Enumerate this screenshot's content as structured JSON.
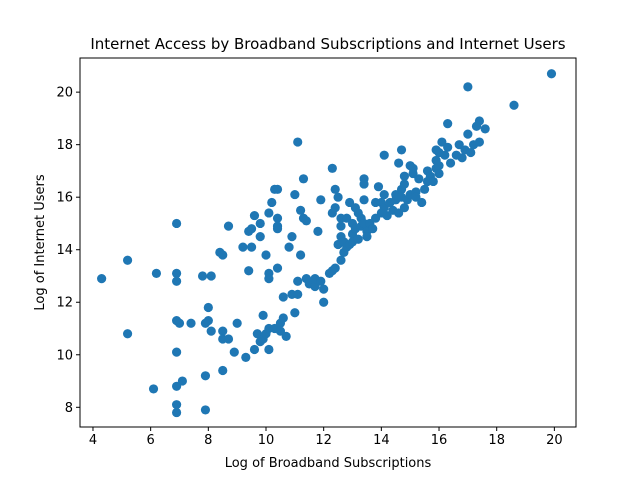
{
  "chart_data": {
    "type": "scatter",
    "title": "Internet Access by Broadband Subscriptions and Internet Users",
    "xlabel": "Log of Broadband Subscriptions",
    "ylabel": "Log of Internet Users",
    "xlim": [
      3.55,
      20.75
    ],
    "ylim": [
      7.25,
      21.3
    ],
    "xticks": [
      4,
      6,
      8,
      10,
      12,
      14,
      16,
      18,
      20
    ],
    "yticks": [
      8,
      10,
      12,
      14,
      16,
      18,
      20
    ],
    "grid": false,
    "marker_color": "#1f77b4",
    "points": [
      [
        4.3,
        12.9
      ],
      [
        5.2,
        13.6
      ],
      [
        5.2,
        10.8
      ],
      [
        6.1,
        8.7
      ],
      [
        6.2,
        13.1
      ],
      [
        6.9,
        15.0
      ],
      [
        6.9,
        13.1
      ],
      [
        6.9,
        12.8
      ],
      [
        6.9,
        11.3
      ],
      [
        7.0,
        11.2
      ],
      [
        6.9,
        10.1
      ],
      [
        6.9,
        8.8
      ],
      [
        6.9,
        8.1
      ],
      [
        6.9,
        7.8
      ],
      [
        7.1,
        9.0
      ],
      [
        7.4,
        11.2
      ],
      [
        7.8,
        13.0
      ],
      [
        7.9,
        11.2
      ],
      [
        8.0,
        11.3
      ],
      [
        8.0,
        11.8
      ],
      [
        8.1,
        13.0
      ],
      [
        8.1,
        10.9
      ],
      [
        7.9,
        9.2
      ],
      [
        7.9,
        7.9
      ],
      [
        8.4,
        13.9
      ],
      [
        8.5,
        13.8
      ],
      [
        8.5,
        10.9
      ],
      [
        8.5,
        10.6
      ],
      [
        8.5,
        9.4
      ],
      [
        8.7,
        14.9
      ],
      [
        8.7,
        10.6
      ],
      [
        8.9,
        10.1
      ],
      [
        9.0,
        11.2
      ],
      [
        9.2,
        14.1
      ],
      [
        9.3,
        9.9
      ],
      [
        9.4,
        13.2
      ],
      [
        9.4,
        14.7
      ],
      [
        9.5,
        14.8
      ],
      [
        9.5,
        14.1
      ],
      [
        9.6,
        15.3
      ],
      [
        9.6,
        10.2
      ],
      [
        9.7,
        10.8
      ],
      [
        9.8,
        15.0
      ],
      [
        9.8,
        14.5
      ],
      [
        9.9,
        11.5
      ],
      [
        9.8,
        10.5
      ],
      [
        10.0,
        13.8
      ],
      [
        9.9,
        10.6
      ],
      [
        10.0,
        10.8
      ],
      [
        10.1,
        15.4
      ],
      [
        10.1,
        13.1
      ],
      [
        10.1,
        12.9
      ],
      [
        10.1,
        11.0
      ],
      [
        10.1,
        10.2
      ],
      [
        10.2,
        15.8
      ],
      [
        10.3,
        16.3
      ],
      [
        10.4,
        16.3
      ],
      [
        10.4,
        15.2
      ],
      [
        10.4,
        14.9
      ],
      [
        10.4,
        14.8
      ],
      [
        10.4,
        13.3
      ],
      [
        10.3,
        11.0
      ],
      [
        10.5,
        11.2
      ],
      [
        10.5,
        10.9
      ],
      [
        10.6,
        12.2
      ],
      [
        10.6,
        11.4
      ],
      [
        10.7,
        10.7
      ],
      [
        10.8,
        14.1
      ],
      [
        10.9,
        14.5
      ],
      [
        11.0,
        16.1
      ],
      [
        10.9,
        12.3
      ],
      [
        11.0,
        11.6
      ],
      [
        11.1,
        18.1
      ],
      [
        11.1,
        12.8
      ],
      [
        11.1,
        12.3
      ],
      [
        11.2,
        15.5
      ],
      [
        11.2,
        13.8
      ],
      [
        11.3,
        16.7
      ],
      [
        11.3,
        15.2
      ],
      [
        11.4,
        15.1
      ],
      [
        11.4,
        12.9
      ],
      [
        11.5,
        12.7
      ],
      [
        11.7,
        12.6
      ],
      [
        11.7,
        12.9
      ],
      [
        11.8,
        14.7
      ],
      [
        11.9,
        15.9
      ],
      [
        11.9,
        12.8
      ],
      [
        12.0,
        12.5
      ],
      [
        12.0,
        12.0
      ],
      [
        12.2,
        13.1
      ],
      [
        12.3,
        17.1
      ],
      [
        12.3,
        15.4
      ],
      [
        12.3,
        13.2
      ],
      [
        12.4,
        16.3
      ],
      [
        12.4,
        15.6
      ],
      [
        12.4,
        13.3
      ],
      [
        12.5,
        16.0
      ],
      [
        12.5,
        14.2
      ],
      [
        12.6,
        15.2
      ],
      [
        12.6,
        14.9
      ],
      [
        12.6,
        14.5
      ],
      [
        12.6,
        13.6
      ],
      [
        12.7,
        14.3
      ],
      [
        12.7,
        13.9
      ],
      [
        12.8,
        15.2
      ],
      [
        12.8,
        14.1
      ],
      [
        12.9,
        15.8
      ],
      [
        12.9,
        14.2
      ],
      [
        13.0,
        15.0
      ],
      [
        13.0,
        14.6
      ],
      [
        13.0,
        14.3
      ],
      [
        13.1,
        15.6
      ],
      [
        13.1,
        14.8
      ],
      [
        13.2,
        15.4
      ],
      [
        13.2,
        14.4
      ],
      [
        13.3,
        15.2
      ],
      [
        13.3,
        14.9
      ],
      [
        13.4,
        16.7
      ],
      [
        13.4,
        16.5
      ],
      [
        13.4,
        15.9
      ],
      [
        13.4,
        15.0
      ],
      [
        13.5,
        14.7
      ],
      [
        13.5,
        14.5
      ],
      [
        13.6,
        15.0
      ],
      [
        13.7,
        14.8
      ],
      [
        13.8,
        15.2
      ],
      [
        13.8,
        15.8
      ],
      [
        13.9,
        16.4
      ],
      [
        14.0,
        15.8
      ],
      [
        14.0,
        15.4
      ],
      [
        14.1,
        17.6
      ],
      [
        14.1,
        16.1
      ],
      [
        14.1,
        15.6
      ],
      [
        14.2,
        15.3
      ],
      [
        14.3,
        15.8
      ],
      [
        14.4,
        15.5
      ],
      [
        14.5,
        16.1
      ],
      [
        14.5,
        15.9
      ],
      [
        14.6,
        17.3
      ],
      [
        14.6,
        15.4
      ],
      [
        14.7,
        17.8
      ],
      [
        14.7,
        16.3
      ],
      [
        14.7,
        16.0
      ],
      [
        14.8,
        16.8
      ],
      [
        14.8,
        16.5
      ],
      [
        14.8,
        15.6
      ],
      [
        14.9,
        15.9
      ],
      [
        15.0,
        17.2
      ],
      [
        15.0,
        16.1
      ],
      [
        15.1,
        17.1
      ],
      [
        15.1,
        16.9
      ],
      [
        15.2,
        16.2
      ],
      [
        15.2,
        16.0
      ],
      [
        15.3,
        16.7
      ],
      [
        15.4,
        15.8
      ],
      [
        15.5,
        16.3
      ],
      [
        15.6,
        17.0
      ],
      [
        15.6,
        16.6
      ],
      [
        15.7,
        16.8
      ],
      [
        15.8,
        16.6
      ],
      [
        15.9,
        17.8
      ],
      [
        15.9,
        17.4
      ],
      [
        15.9,
        17.1
      ],
      [
        16.0,
        17.7
      ],
      [
        16.0,
        17.2
      ],
      [
        16.0,
        16.9
      ],
      [
        16.1,
        18.1
      ],
      [
        16.2,
        17.6
      ],
      [
        16.3,
        18.8
      ],
      [
        16.3,
        17.9
      ],
      [
        16.4,
        17.3
      ],
      [
        16.6,
        17.6
      ],
      [
        16.7,
        18.0
      ],
      [
        16.8,
        17.5
      ],
      [
        16.9,
        17.8
      ],
      [
        17.0,
        20.2
      ],
      [
        17.0,
        18.4
      ],
      [
        17.1,
        17.7
      ],
      [
        17.2,
        18.0
      ],
      [
        17.3,
        18.7
      ],
      [
        17.4,
        18.9
      ],
      [
        17.4,
        18.1
      ],
      [
        17.6,
        18.6
      ],
      [
        18.6,
        19.5
      ],
      [
        19.9,
        20.7
      ]
    ]
  }
}
